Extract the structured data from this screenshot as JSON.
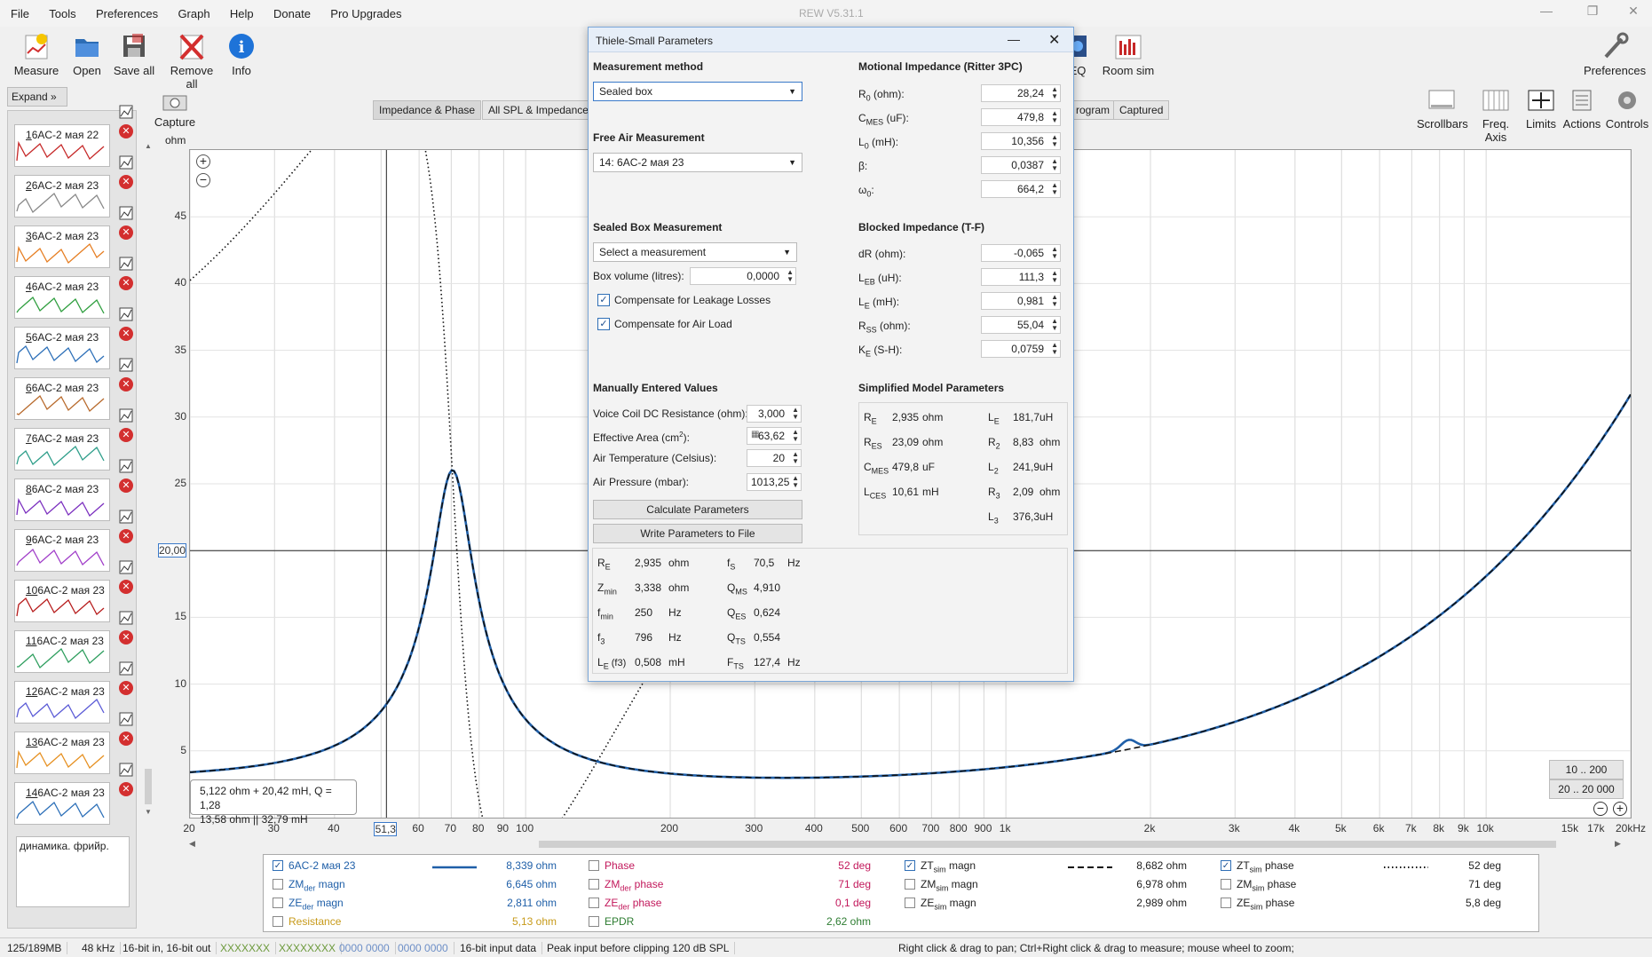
{
  "app": {
    "title": "REW V5.31.1"
  },
  "menu": [
    "File",
    "Tools",
    "Preferences",
    "Graph",
    "Help",
    "Donate",
    "Pro Upgrades"
  ],
  "toolbar": {
    "measure": "Measure",
    "open": "Open",
    "save_all": "Save all",
    "remove_all": "Remove all",
    "info": "Info",
    "eq": "EQ",
    "room_sim": "Room sim",
    "preferences": "Preferences",
    "capture_1": "Capture",
    "capture_2": "ohm",
    "scrollbars": "Scrollbars",
    "freq_axis": "Freq. Axis",
    "limits": "Limits",
    "actions": "Actions",
    "controls": "Controls"
  },
  "sidebar": {
    "expand": "Expand",
    "note": "динамика. фрийр.",
    "items": [
      {
        "num": "1",
        "name": "6AC-2 мая 22",
        "color": "#c62828"
      },
      {
        "num": "2",
        "name": "6AC-2 мая 23",
        "color": "#888888"
      },
      {
        "num": "3",
        "name": "6AC-2 мая 23",
        "color": "#e67e22"
      },
      {
        "num": "4",
        "name": "6AC-2 мая 23",
        "color": "#2e9e3e"
      },
      {
        "num": "5",
        "name": "6AC-2 мая 23",
        "color": "#2c6fb8"
      },
      {
        "num": "6",
        "name": "6AC-2 мая 23",
        "color": "#b86a2c"
      },
      {
        "num": "7",
        "name": "6AC-2 мая 23",
        "color": "#2e9e8a"
      },
      {
        "num": "8",
        "name": "6AC-2 мая 23",
        "color": "#7b2fbf"
      },
      {
        "num": "9",
        "name": "6AC-2 мая 23",
        "color": "#a13fc9"
      },
      {
        "num": "10",
        "name": "6AC-2 мая 23",
        "color": "#b71c1c"
      },
      {
        "num": "11",
        "name": "6AC-2 мая 23",
        "color": "#2e9e5e"
      },
      {
        "num": "12",
        "name": "6AC-2 мая 23",
        "color": "#5a5ad6"
      },
      {
        "num": "13",
        "name": "6AC-2 мая 23",
        "color": "#e69020"
      },
      {
        "num": "14",
        "name": "6AC-2 мая 23",
        "color": "#2c6fb8"
      }
    ]
  },
  "tabs": {
    "impedance_phase": "Impedance & Phase",
    "all_spl": "All SPL & Impedance",
    "program": "rogram",
    "captured": "Captured"
  },
  "graph": {
    "y_ticks": [
      "45",
      "40",
      "35",
      "30",
      "25",
      "20,00",
      "15",
      "10",
      "5"
    ],
    "x_ticks": [
      "20",
      "30",
      "40",
      "51,3",
      "60",
      "70",
      "80",
      "90",
      "100",
      "200",
      "300",
      "400",
      "500",
      "600",
      "700",
      "800",
      "900",
      "1k",
      "2k",
      "3k",
      "4k",
      "5k",
      "6k",
      "7k",
      "8k",
      "9k",
      "10k",
      "15k",
      "17k",
      "20kHz"
    ],
    "sidebar_x": [
      "20",
      "5,0k"
    ],
    "cursor_readout_1": "5,122 ohm + 20,42 mH, Q = 1,28",
    "cursor_readout_2": "13,58 ohm || 32,79 mH",
    "range_1": "10 .. 200",
    "range_2": "20 .. 20 000",
    "measured_color": "#1f5fa8"
  },
  "dialog": {
    "title": "Thiele-Small Parameters",
    "measurement_method_title": "Measurement method",
    "method_value": "Sealed box",
    "free_air_title": "Free Air Measurement",
    "free_air_value": "14: 6AC-2 мая 23",
    "sealed_box_title": "Sealed Box Measurement",
    "sealed_box_value": "Select a measurement",
    "box_volume_label": "Box volume (litres):",
    "box_volume_value": "0,0000",
    "leakage_label": "Compensate for Leakage Losses",
    "air_load_label": "Compensate for Air Load",
    "manual_title": "Manually Entered Values",
    "voice_coil_label": "Voice Coil DC Resistance (ohm):",
    "voice_coil_value": "3,000",
    "area_label": "Effective Area (cm",
    "area_sup": "2",
    "area_suffix": "):",
    "area_value": "63,62",
    "temp_label": "Air Temperature (Celsius):",
    "temp_value": "20",
    "pressure_label": "Air Pressure (mbar):",
    "pressure_value": "1013,25",
    "calc_btn": "Calculate Parameters",
    "write_btn": "Write Parameters to File",
    "motional_title": "Motional Impedance (Ritter 3PC)",
    "motional": [
      {
        "k": "R",
        "sub": "0",
        "unit": " (ohm):",
        "v": "28,24"
      },
      {
        "k": "C",
        "sub": "MES",
        "unit": " (uF):",
        "v": "479,8"
      },
      {
        "k": "L",
        "sub": "0",
        "unit": " (mH):",
        "v": "10,356"
      },
      {
        "k": "β",
        "sub": "",
        "unit": ":",
        "v": "0,0387"
      },
      {
        "k": "ω",
        "sub": "0",
        "unit": ":",
        "v": "664,2"
      }
    ],
    "blocked_title": "Blocked Impedance (T-F)",
    "blocked": [
      {
        "k": "dR",
        "sub": "",
        "unit": " (ohm):",
        "v": "-0,065"
      },
      {
        "k": "L",
        "sub": "EB",
        "unit": " (uH):",
        "v": "111,3"
      },
      {
        "k": "L",
        "sub": "E",
        "unit": " (mH):",
        "v": "0,981"
      },
      {
        "k": "R",
        "sub": "SS",
        "unit": " (ohm):",
        "v": "55,04"
      },
      {
        "k": "K",
        "sub": "E",
        "unit": " (S-H):",
        "v": "0,0759"
      }
    ],
    "simplified_title": "Simplified Model Parameters",
    "simplified_left": [
      {
        "k": "R",
        "sub": "E",
        "v": "2,935",
        "u": "ohm"
      },
      {
        "k": "R",
        "sub": "ES",
        "v": "23,09",
        "u": "ohm"
      },
      {
        "k": "C",
        "sub": "MES",
        "v": "479,8",
        "u": "uF"
      },
      {
        "k": "L",
        "sub": "CES",
        "v": "10,61",
        "u": "mH"
      }
    ],
    "simplified_right": [
      {
        "k": "L",
        "sub": "E",
        "v": "181,7",
        "u": "uH"
      },
      {
        "k": "R",
        "sub": "2",
        "v": "8,83",
        "u": "ohm"
      },
      {
        "k": "L",
        "sub": "2",
        "v": "241,9",
        "u": "uH"
      },
      {
        "k": "R",
        "sub": "3",
        "v": "2,09",
        "u": "ohm"
      },
      {
        "k": "L",
        "sub": "3",
        "v": "376,3",
        "u": "uH"
      }
    ],
    "results_left": [
      {
        "k": "R",
        "sub": "E",
        "v": "2,935",
        "u": "ohm"
      },
      {
        "k": "Z",
        "sub": "min",
        "v": "3,338",
        "u": "ohm"
      },
      {
        "k": "f",
        "sub": "min",
        "v": "250",
        "u": "Hz"
      },
      {
        "k": "f",
        "sub": "3",
        "v": "796",
        "u": "Hz"
      },
      {
        "k": "L",
        "sub": "E",
        "v": "0,508",
        "u": "mH",
        "extra": " (f3)"
      }
    ],
    "results_right": [
      {
        "k": "f",
        "sub": "S",
        "v": "70,5",
        "u": "Hz"
      },
      {
        "k": "Q",
        "sub": "MS",
        "v": "4,910",
        "u": ""
      },
      {
        "k": "Q",
        "sub": "ES",
        "v": "0,624",
        "u": ""
      },
      {
        "k": "Q",
        "sub": "TS",
        "v": "0,554",
        "u": ""
      },
      {
        "k": "F",
        "sub": "TS",
        "v": "127,4",
        "u": "Hz"
      }
    ]
  },
  "legend": {
    "col1": [
      {
        "label": "6AC-2 мая 23",
        "value": "8,339 ohm",
        "checked": true,
        "color": "#1f5fa8"
      },
      {
        "label": "ZM",
        "sub": "der",
        "suffix": " magn",
        "value": "6,645 ohm",
        "checked": false,
        "color": "#1f5fa8"
      },
      {
        "label": "ZE",
        "sub": "der",
        "suffix": " magn",
        "value": "2,811 ohm",
        "checked": false,
        "color": "#1f5fa8"
      },
      {
        "label": "Resistance",
        "value": "5,13 ohm",
        "checked": false,
        "color": "#c79a1a"
      }
    ],
    "col2": [
      {
        "label": "Phase",
        "value": "52 deg",
        "checked": false,
        "color": "#c2185b"
      },
      {
        "label": "ZM",
        "sub": "der",
        "suffix": " phase",
        "value": "71 deg",
        "checked": false,
        "color": "#c2185b"
      },
      {
        "label": "ZE",
        "sub": "der",
        "suffix": " phase",
        "value": "0,1 deg",
        "checked": false,
        "color": "#c2185b"
      },
      {
        "label": "EPDR",
        "value": "2,62 ohm",
        "checked": false,
        "color": "#2e7d32"
      }
    ],
    "col3": [
      {
        "label": "ZT",
        "sub": "sim",
        "suffix": " magn",
        "value": "8,682 ohm",
        "checked": true
      },
      {
        "label": "ZM",
        "sub": "sim",
        "suffix": " magn",
        "value": "6,978 ohm",
        "checked": false
      },
      {
        "label": "ZE",
        "sub": "sim",
        "suffix": " magn",
        "value": "2,989 ohm",
        "checked": false
      }
    ],
    "col4": [
      {
        "label": "ZT",
        "sub": "sim",
        "suffix": " phase",
        "value": "52 deg",
        "checked": true
      },
      {
        "label": "ZM",
        "sub": "sim",
        "suffix": " phase",
        "value": "71 deg",
        "checked": false
      },
      {
        "label": "ZE",
        "sub": "sim",
        "suffix": " phase",
        "value": "5,8 deg",
        "checked": false
      }
    ]
  },
  "status": {
    "memory": "125/189MB",
    "rate": "48 kHz",
    "bits": "16-bit in, 16-bit out",
    "levels_1": "XXXXXXX",
    "levels_2": "XXXXXXXX",
    "zeros_1": "0000 0000",
    "zeros_2": "0000 0000",
    "input": "16-bit input data",
    "peak": "Peak input before clipping 120 dB SPL",
    "hint": "Right click & drag to pan; Ctrl+Right click & drag to measure; mouse wheel to zoom;"
  }
}
